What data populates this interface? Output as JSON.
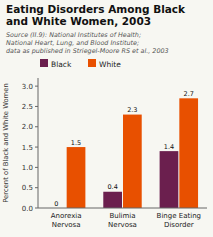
{
  "chart_data": {
    "type": "bar",
    "title": "Eating Disorders Among Black\nand White Women, 2003",
    "subtitle": "Source (II.9): National Institutes of Health;\nNational Heart, Lung, and Blood Institute;\ndata as published in Striegel-Moore RS et al., 2003",
    "categories": [
      "Anorexia\nNervosa",
      "Bulimia\nNervosa",
      "Binge Eating\nDisorder"
    ],
    "series": [
      {
        "name": "Black",
        "color": "#6B1F4E",
        "values": [
          0,
          0.4,
          1.4
        ]
      },
      {
        "name": "White",
        "color": "#E85000",
        "values": [
          1.5,
          2.3,
          2.7
        ]
      }
    ],
    "y_label": "Percent of Black and White Women",
    "ylim": [
      0,
      3.2
    ],
    "yticks": [
      {
        "value": 0.0,
        "label": "0.0"
      },
      0.5,
      {
        "value": 1.0,
        "label": "1.0"
      },
      1.5,
      {
        "value": 2.0,
        "label": "2.0"
      },
      2.5,
      {
        "value": 3.0,
        "label": "3.0"
      }
    ],
    "data_labels": true,
    "grid": false
  }
}
